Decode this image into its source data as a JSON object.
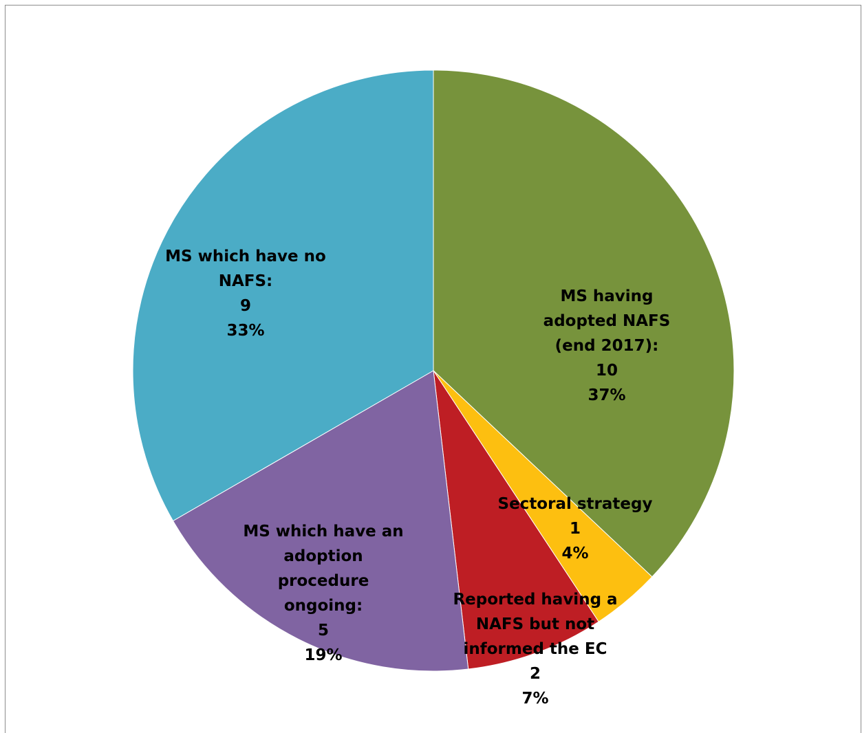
{
  "chart_data": {
    "type": "pie",
    "title": "",
    "slices": [
      {
        "label_lines": [
          "MS having",
          "adopted NAFS",
          "(end 2017):"
        ],
        "value": 10,
        "percent": "37%",
        "color": "#77933C"
      },
      {
        "label_lines": [
          "Sectoral strategy"
        ],
        "value": 1,
        "percent": "4%",
        "color": "#FDBF10"
      },
      {
        "label_lines": [
          "Reported having a",
          "NAFS but not",
          "informed the EC"
        ],
        "value": 2,
        "percent": "7%",
        "color": "#BE1E24"
      },
      {
        "label_lines": [
          "MS which have an",
          "adoption",
          "procedure",
          "ongoing:"
        ],
        "value": 5,
        "percent": "19%",
        "color": "#8064A2"
      },
      {
        "label_lines": [
          "MS which have no",
          "NAFS:"
        ],
        "value": 9,
        "percent": "33%",
        "color": "#4BACC6"
      }
    ],
    "start_angle": "12 o'clock",
    "direction": "clockwise",
    "legend": "none"
  }
}
